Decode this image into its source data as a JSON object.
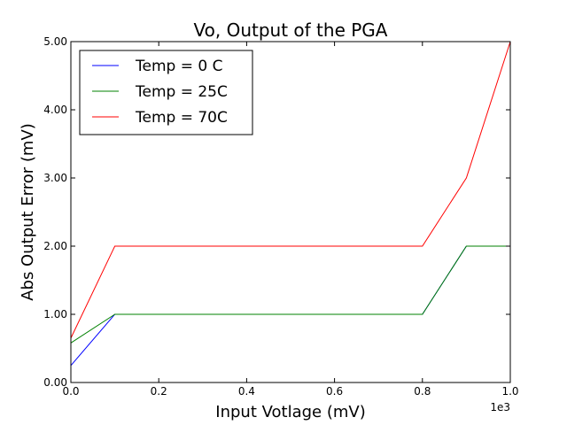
{
  "chart_data": {
    "type": "line",
    "title": "Vo, Output of the PGA",
    "xlabel": "Input Votlage (mV)",
    "ylabel": "Abs Output Error (mV)",
    "x_offset_label": "1e3",
    "xlim": [
      0,
      1
    ],
    "ylim": [
      0,
      5
    ],
    "xticks": [
      "0.0",
      "0.2",
      "0.4",
      "0.6",
      "0.8",
      "1.0"
    ],
    "yticks": [
      "0.00",
      "1.00",
      "2.00",
      "3.00",
      "4.00",
      "5.00"
    ],
    "grid": false,
    "legend_position": "top-left",
    "x": [
      0,
      0.1,
      0.2,
      0.3,
      0.4,
      0.5,
      0.6,
      0.7,
      0.8,
      0.9,
      1.0
    ],
    "series": [
      {
        "name": "Temp = 0 C",
        "color": "#0000ff",
        "values": [
          0.25,
          1,
          1,
          1,
          1,
          1,
          1,
          1,
          1,
          2,
          2
        ]
      },
      {
        "name": "Temp = 25C",
        "color": "#008000",
        "values": [
          0.58,
          1,
          1,
          1,
          1,
          1,
          1,
          1,
          1,
          2,
          2
        ]
      },
      {
        "name": "Temp = 70C",
        "color": "#ff0000",
        "values": [
          0.65,
          2,
          2,
          2,
          2,
          2,
          2,
          2,
          2,
          3,
          5
        ]
      }
    ]
  }
}
